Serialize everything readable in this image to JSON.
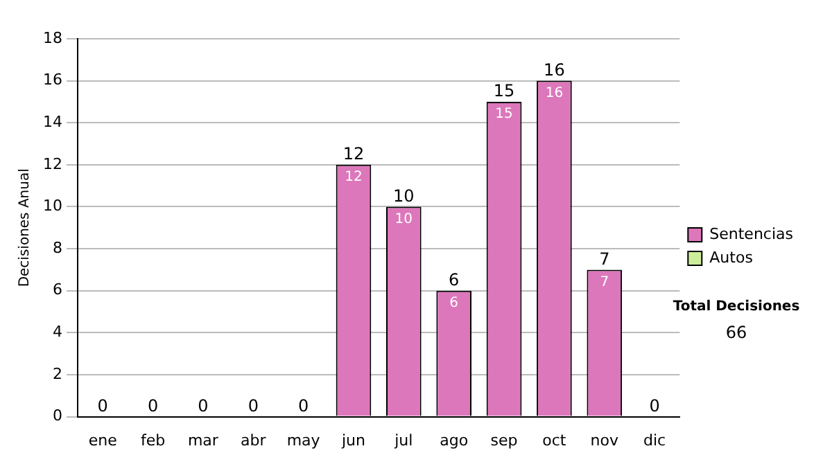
{
  "chart_data": {
    "type": "bar",
    "ylabel": "Decisiones Anual",
    "categories": [
      "ene",
      "feb",
      "mar",
      "abr",
      "may",
      "jun",
      "jul",
      "ago",
      "sep",
      "oct",
      "nov",
      "dic"
    ],
    "stacked": true,
    "series": [
      {
        "name": "Sentencias",
        "color": "#dd77bb",
        "values": [
          0,
          0,
          0,
          0,
          0,
          12,
          10,
          6,
          15,
          16,
          7,
          0
        ],
        "value_labels": [
          null,
          null,
          null,
          null,
          null,
          "12",
          "10",
          "6",
          "15",
          "16",
          "7",
          null
        ]
      },
      {
        "name": "Autos",
        "color": "#ccee99",
        "values": [
          0,
          0,
          0,
          0,
          0,
          0,
          0,
          0,
          0,
          0,
          0,
          0
        ]
      }
    ],
    "totals": [
      "0",
      "0",
      "0",
      "0",
      "0",
      "12",
      "10",
      "6",
      "15",
      "16",
      "7",
      "0"
    ],
    "ylim": [
      0,
      18
    ],
    "yticks": [
      0,
      2,
      4,
      6,
      8,
      10,
      12,
      14,
      16,
      18
    ],
    "grid": "y",
    "legend": "right",
    "annotations": [
      "Total Decisiones",
      "66"
    ]
  }
}
